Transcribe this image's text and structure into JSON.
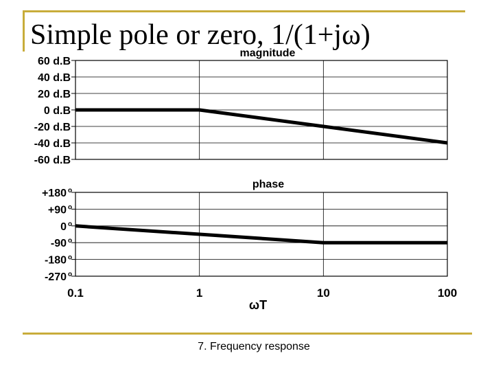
{
  "slide": {
    "title": "Simple pole or zero, 1/(1+jω)",
    "footer": "7. Frequency response"
  },
  "chart_data": [
    {
      "type": "line",
      "title": "magnitude",
      "x_scale": "log",
      "xlim": [
        0.1,
        100
      ],
      "ylim": [
        -60,
        60
      ],
      "y_ticks": [
        60,
        40,
        20,
        0,
        -20,
        -40,
        -60
      ],
      "y_tick_labels": [
        "60 d.B",
        "40 d.B",
        "20 d.B",
        "0 d.B",
        "-20 d.B",
        "-40 d.B",
        "-60 d.B"
      ],
      "grid": true,
      "series": [
        {
          "x": [
            0.1,
            1,
            10,
            100
          ],
          "y": [
            0,
            0,
            -20,
            -40
          ]
        }
      ]
    },
    {
      "type": "line",
      "title": "phase",
      "x_scale": "log",
      "xlim": [
        0.1,
        100
      ],
      "ylim": [
        -270,
        180
      ],
      "y_ticks": [
        180,
        90,
        0,
        -90,
        -180,
        -270
      ],
      "y_tick_labels": [
        "+180",
        "+90",
        "0",
        "-90",
        "-180",
        "-270"
      ],
      "y_tick_suffix": "o",
      "x_ticks": [
        0.1,
        1,
        10,
        100
      ],
      "x_tick_labels": [
        "0.1",
        "1",
        "10",
        "100"
      ],
      "xlabel": "ωT",
      "grid": true,
      "series": [
        {
          "x": [
            0.1,
            10,
            100
          ],
          "y": [
            0,
            -90,
            -90
          ]
        }
      ]
    }
  ]
}
